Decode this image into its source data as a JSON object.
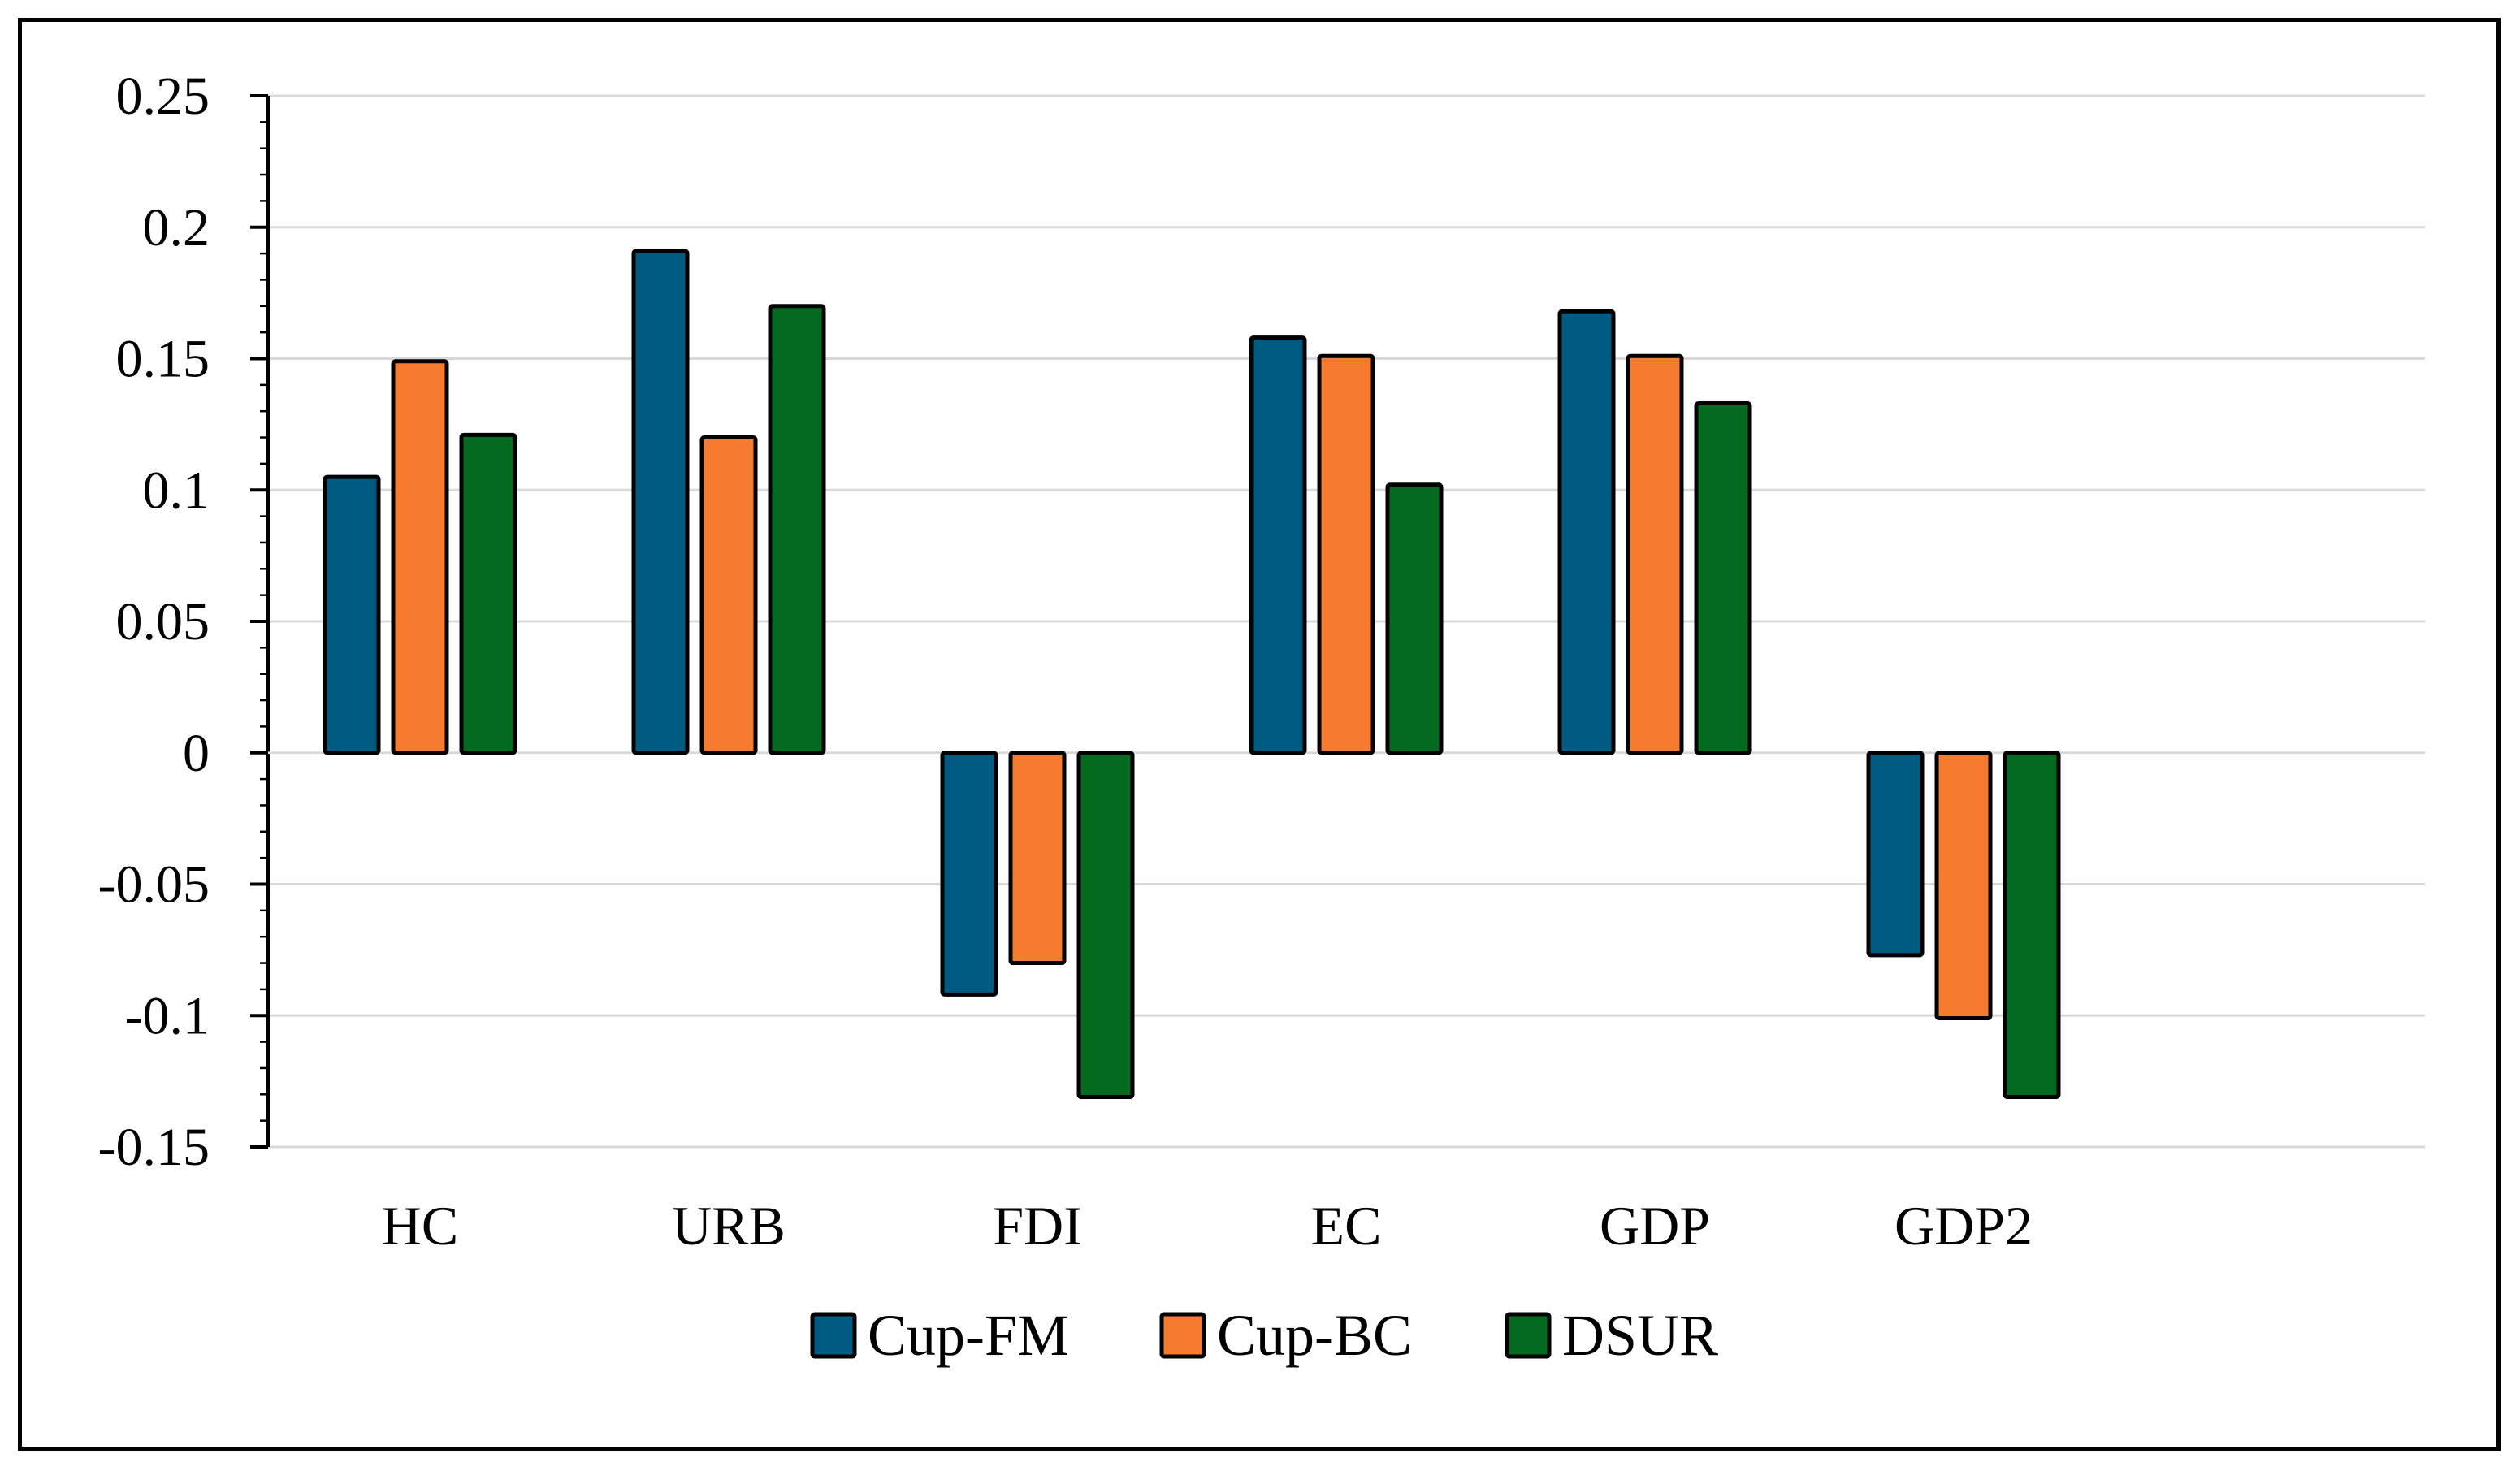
{
  "chart_data": {
    "type": "bar",
    "title": "",
    "xlabel": "",
    "ylabel": "",
    "categories": [
      "HC",
      "URB",
      "FDI",
      "EC",
      "GDP",
      "GDP2"
    ],
    "series": [
      {
        "name": "Cup-FM",
        "color": "#005b82",
        "values": [
          0.105,
          0.191,
          -0.092,
          0.158,
          0.168,
          -0.077
        ]
      },
      {
        "name": "Cup-BC",
        "color": "#f77b2e",
        "values": [
          0.149,
          0.12,
          -0.08,
          0.151,
          0.151,
          -0.101
        ]
      },
      {
        "name": "DSUR",
        "color": "#046a1f",
        "values": [
          0.121,
          0.17,
          -0.131,
          0.102,
          0.133,
          -0.131
        ]
      }
    ],
    "ylim": [
      -0.15,
      0.25
    ],
    "yticks": [
      0.25,
      0.2,
      0.15,
      0.1,
      0.05,
      0,
      -0.05,
      -0.1,
      -0.15
    ],
    "ytick_labels": [
      "0.25",
      "0.2",
      "0.15",
      "0.1",
      "0.05",
      "0",
      "-0.05",
      "-0.1",
      "-0.15"
    ],
    "grid": true,
    "legend": "bottom"
  }
}
